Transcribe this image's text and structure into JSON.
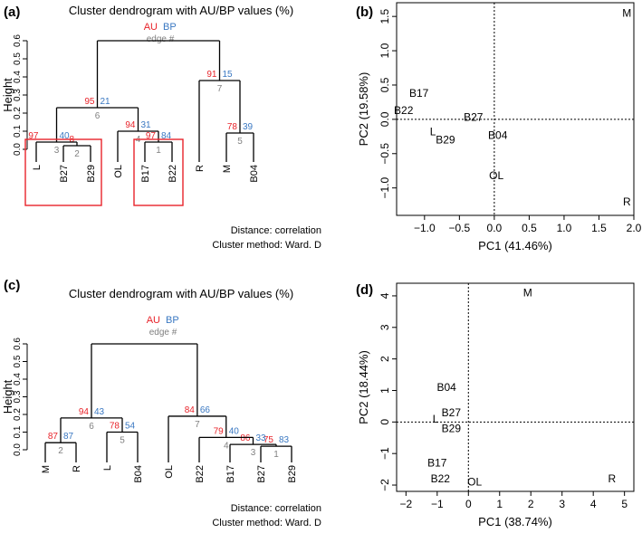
{
  "colors": {
    "au": "#e8232a",
    "bp": "#3a78c2",
    "edge": "#808080",
    "ink": "#000000",
    "box": "#e8232a"
  },
  "chart_data": [
    {
      "panel": "(a)",
      "type": "dendrogram",
      "title": "Cluster dendrogram with AU/BP values (%)",
      "ylabel": "Height",
      "ylim": [
        0,
        0.6
      ],
      "yticks": [
        "0.0",
        "0.1",
        "0.2",
        "0.3",
        "0.4",
        "0.5",
        "0.6"
      ],
      "legend": {
        "au": "AU",
        "bp": "BP",
        "edge": "edge #"
      },
      "footer": [
        "Distance: correlation",
        "Cluster method: Ward. D"
      ],
      "leaves": [
        "L",
        "B27",
        "B29",
        "OL",
        "B17",
        "B22",
        "R",
        "M",
        "B04"
      ],
      "merges": [
        {
          "id": "a1",
          "left": "B27",
          "right": "B29",
          "height": 0.02,
          "au": "8",
          "bp": "",
          "edge": "2"
        },
        {
          "id": "a2",
          "left": "L",
          "right": "a1",
          "height": 0.04,
          "au": "",
          "bp": "40",
          "edge": "3"
        },
        {
          "id": "a3",
          "left": "B17",
          "right": "B22",
          "height": 0.04,
          "au": "97",
          "bp": "84",
          "edge": "1"
        },
        {
          "id": "a4",
          "left": "OL",
          "right": "a3",
          "height": 0.1,
          "au": "94",
          "bp": "31",
          "edge": "4"
        },
        {
          "id": "a5",
          "left": "M",
          "right": "B04",
          "height": 0.09,
          "au": "78",
          "bp": "39",
          "edge": "5"
        },
        {
          "id": "a6",
          "left": "a2",
          "right": "a4",
          "height": 0.23,
          "au": "95",
          "bp": "21",
          "edge": "6"
        },
        {
          "id": "a7",
          "left": "R",
          "right": "a5",
          "height": 0.38,
          "au": "91",
          "bp": "15",
          "edge": "7"
        },
        {
          "id": "a8",
          "left": "a6",
          "right": "a7",
          "height": 0.6,
          "au": "",
          "bp": "",
          "edge": ""
        }
      ],
      "extra_labels": [
        {
          "text": "97",
          "color": "au",
          "near": "a2",
          "side": "left"
        }
      ],
      "boxes": [
        [
          "L",
          "B29"
        ],
        [
          "B17",
          "B22"
        ]
      ]
    },
    {
      "panel": "(b)",
      "type": "scatter",
      "xlabel": "PC1 (41.46%)",
      "ylabel": "PC2 (19.58%)",
      "xlim": [
        -1.4,
        2.0
      ],
      "ylim": [
        -1.4,
        1.7
      ],
      "xticks": [
        -1.0,
        -0.5,
        0.0,
        0.5,
        1.0,
        1.5,
        2.0
      ],
      "xtick_labels": [
        "−1.0",
        "−0.5",
        "0.0",
        "0.5",
        "1.0",
        "1.5",
        "2.0"
      ],
      "yticks": [
        -1.0,
        -0.5,
        0.0,
        0.5,
        1.0,
        1.5
      ],
      "ytick_labels": [
        "−1.0",
        "−0.5",
        "0.0",
        "0.5",
        "1.0",
        "1.5"
      ],
      "points": [
        {
          "label": "M",
          "x": 1.9,
          "y": 1.55
        },
        {
          "label": "B17",
          "x": -1.08,
          "y": 0.38
        },
        {
          "label": "B22",
          "x": -1.3,
          "y": 0.13
        },
        {
          "label": "B27",
          "x": -0.3,
          "y": 0.03
        },
        {
          "label": "L",
          "x": -0.88,
          "y": -0.18
        },
        {
          "label": "B29",
          "x": -0.7,
          "y": -0.3
        },
        {
          "label": "B04",
          "x": 0.05,
          "y": -0.23
        },
        {
          "label": "OL",
          "x": 0.03,
          "y": -0.82
        },
        {
          "label": "R",
          "x": 1.9,
          "y": -1.2
        }
      ]
    },
    {
      "panel": "(c)",
      "type": "dendrogram",
      "title": "Cluster dendrogram with AU/BP values (%)",
      "ylabel": "Height",
      "ylim": [
        0,
        0.6
      ],
      "yticks": [
        "0.0",
        "0.1",
        "0.2",
        "0.3",
        "0.4",
        "0.5",
        "0.6"
      ],
      "legend": {
        "au": "AU",
        "bp": "BP",
        "edge": "edge #"
      },
      "footer": [
        "Distance: correlation",
        "Cluster method: Ward. D"
      ],
      "leaves": [
        "M",
        "R",
        "L",
        "B04",
        "OL",
        "B22",
        "B17",
        "B27",
        "B29"
      ],
      "merges": [
        {
          "id": "c1",
          "left": "M",
          "right": "R",
          "height": 0.04,
          "au": "87",
          "bp": "87",
          "edge": "2"
        },
        {
          "id": "c2",
          "left": "L",
          "right": "B04",
          "height": 0.1,
          "au": "78",
          "bp": "54",
          "edge": "5"
        },
        {
          "id": "c3",
          "left": "B27",
          "right": "B29",
          "height": 0.02,
          "au": "75",
          "bp": "83",
          "edge": "1"
        },
        {
          "id": "c4",
          "left": "B17",
          "right": "c3",
          "height": 0.03,
          "au": "86",
          "bp": "33",
          "edge": "3"
        },
        {
          "id": "c5",
          "left": "B22",
          "right": "c4",
          "height": 0.07,
          "au": "79",
          "bp": "40",
          "edge": "4"
        },
        {
          "id": "c6",
          "left": "c1",
          "right": "c2",
          "height": 0.18,
          "au": "94",
          "bp": "43",
          "edge": "6"
        },
        {
          "id": "c7",
          "left": "OL",
          "right": "c5",
          "height": 0.19,
          "au": "84",
          "bp": "66",
          "edge": "7"
        },
        {
          "id": "c8",
          "left": "c6",
          "right": "c7",
          "height": 0.6,
          "au": "",
          "bp": "",
          "edge": ""
        }
      ],
      "extra_labels": [],
      "boxes": []
    },
    {
      "panel": "(d)",
      "type": "scatter",
      "xlabel": "PC1 (38.74%)",
      "ylabel": "PC2 (18.44%)",
      "xlim": [
        -2.3,
        5.3
      ],
      "ylim": [
        -2.2,
        4.4
      ],
      "xticks": [
        -2,
        -1,
        0,
        1,
        2,
        3,
        4,
        5
      ],
      "xtick_labels": [
        "−2",
        "−1",
        "0",
        "1",
        "2",
        "3",
        "4",
        "5"
      ],
      "yticks": [
        -2,
        -1,
        0,
        1,
        2,
        3,
        4
      ],
      "ytick_labels": [
        "−2",
        "−1",
        "0",
        "1",
        "2",
        "3",
        "4"
      ],
      "points": [
        {
          "label": "M",
          "x": 1.9,
          "y": 4.1
        },
        {
          "label": "B04",
          "x": -0.7,
          "y": 1.1
        },
        {
          "label": "B27",
          "x": -0.55,
          "y": 0.3
        },
        {
          "label": "L",
          "x": -1.05,
          "y": 0.1
        },
        {
          "label": "B29",
          "x": -0.55,
          "y": -0.2
        },
        {
          "label": "B17",
          "x": -1.0,
          "y": -1.3
        },
        {
          "label": "B22",
          "x": -0.9,
          "y": -1.8
        },
        {
          "label": "OL",
          "x": 0.2,
          "y": -1.9
        },
        {
          "label": "R",
          "x": 4.6,
          "y": -1.8
        }
      ]
    }
  ]
}
